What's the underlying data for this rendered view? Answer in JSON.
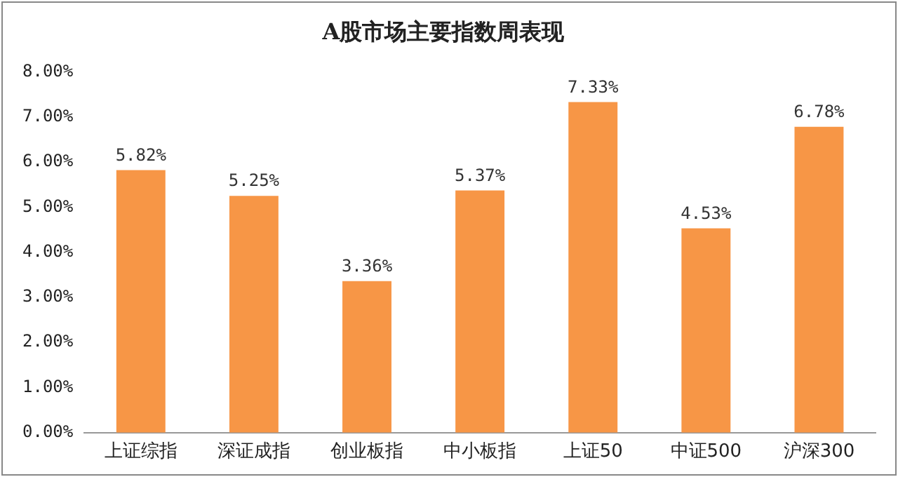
{
  "chart_data": {
    "type": "bar",
    "title": "A股市场主要指数周表现",
    "categories": [
      "上证综指",
      "深证成指",
      "创业板指",
      "中小板指",
      "上证50",
      "中证500",
      "沪深300"
    ],
    "values": [
      5.82,
      5.25,
      3.36,
      5.37,
      7.33,
      4.53,
      6.78
    ],
    "value_labels": [
      "5.82%",
      "5.25%",
      "3.36%",
      "5.37%",
      "7.33%",
      "4.53%",
      "6.78%"
    ],
    "color": "#f79646",
    "ylim": [
      0,
      8
    ],
    "yticks": [
      {
        "value": 0,
        "label": "0.00%"
      },
      {
        "value": 1,
        "label": "1.00%"
      },
      {
        "value": 2,
        "label": "2.00%"
      },
      {
        "value": 3,
        "label": "3.00%"
      },
      {
        "value": 4,
        "label": "4.00%"
      },
      {
        "value": 5,
        "label": "5.00%"
      },
      {
        "value": 6,
        "label": "6.00%"
      },
      {
        "value": 7,
        "label": "7.00%"
      },
      {
        "value": 8,
        "label": "8.00%"
      }
    ],
    "grid": false,
    "legend": false
  }
}
